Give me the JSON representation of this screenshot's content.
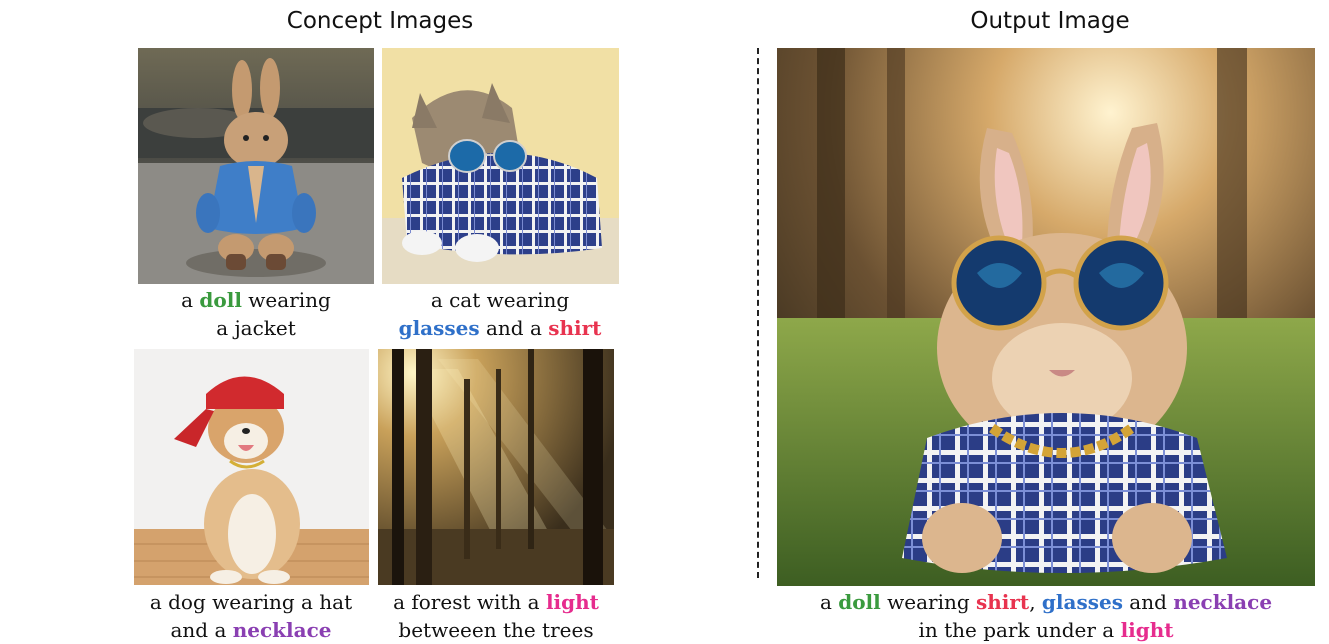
{
  "headings": {
    "concept": "Concept Images",
    "output": "Output Image"
  },
  "colors": {
    "doll": "#3a9a3e",
    "glasses": "#2f70c9",
    "shirt": "#e8334f",
    "necklace": "#8a3fb2",
    "light": "#e62c8e"
  },
  "concepts": [
    {
      "image": "plush-rabbit-doll-in-blue-jacket",
      "caption": {
        "line1": {
          "pre": "a ",
          "kw": "doll",
          "post": " wearing"
        },
        "line2": {
          "text": "a jacket"
        }
      }
    },
    {
      "image": "cat-in-sunglasses-and-plaid-shirt",
      "caption": {
        "line1": {
          "text": "a cat wearing"
        },
        "line2": {
          "kw1": "glasses",
          "mid": " and a ",
          "kw2": "shirt"
        }
      }
    },
    {
      "image": "shiba-dog-with-red-cap-and-gold-chain",
      "caption": {
        "line1": {
          "text": "a dog wearing a hat"
        },
        "line2": {
          "pre": "and a ",
          "kw": "necklace"
        }
      }
    },
    {
      "image": "forest-with-sunbeams",
      "caption": {
        "line1": {
          "pre": "a forest with a ",
          "kw": "light"
        },
        "line2": {
          "text": "betweeen the trees"
        }
      }
    }
  ],
  "output": {
    "image": "rabbit-with-sunglasses-plaid-shirt-gold-chain-in-park",
    "caption": {
      "line1": {
        "a": "a ",
        "doll": "doll",
        "wearing": " wearing ",
        "shirt": "shirt",
        "comma": ", ",
        "glasses": "glasses",
        "and": " and ",
        "necklace": "necklace"
      },
      "line2": {
        "pre": "in the park under a ",
        "kw": "light"
      }
    }
  }
}
